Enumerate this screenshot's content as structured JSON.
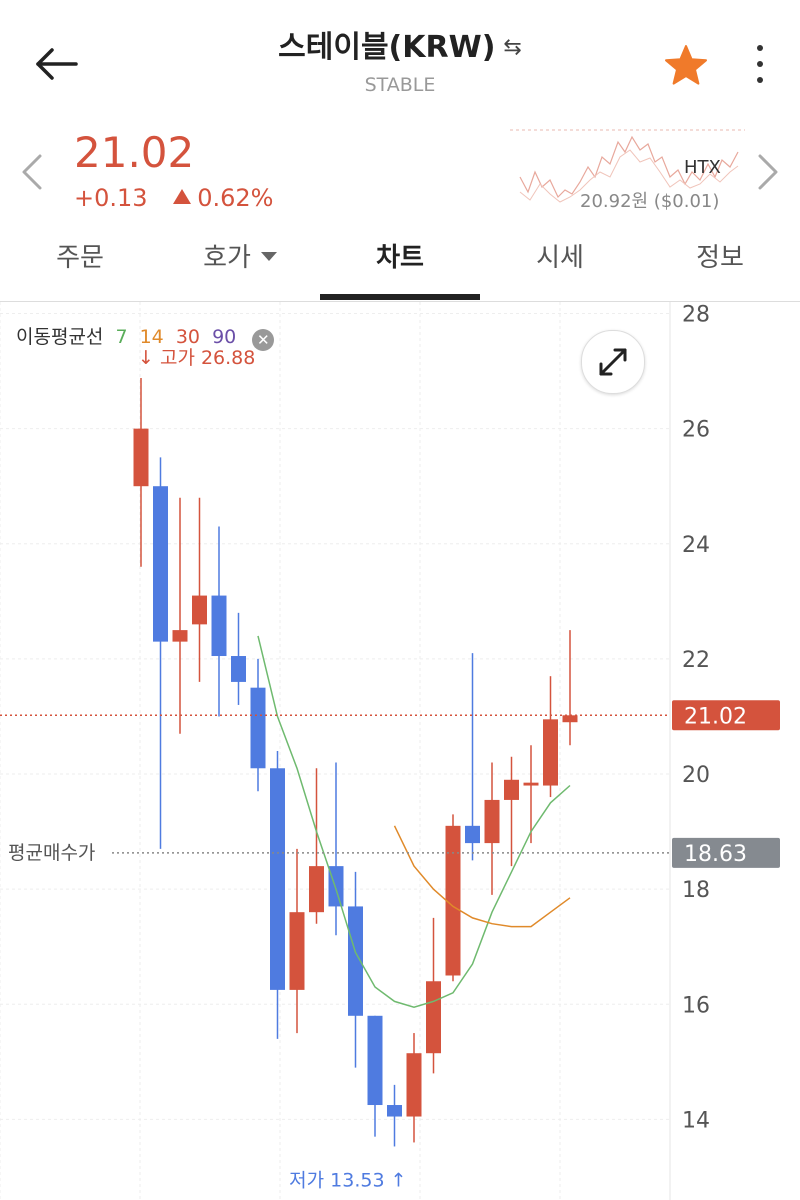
{
  "header": {
    "title": "스테이블(KRW)",
    "swap_symbol": "⇆",
    "subtitle": "STABLE"
  },
  "price": {
    "current": "21.02",
    "change": "+0.13",
    "change_pct": "0.62%",
    "exchange": "HTX",
    "converted": "20.92원 ($0.01)"
  },
  "tabs": [
    {
      "label": "주문"
    },
    {
      "label": "호가"
    },
    {
      "label": "차트"
    },
    {
      "label": "시세"
    },
    {
      "label": "정보"
    }
  ],
  "ma_legend": {
    "title": "이동평균선",
    "periods": [
      {
        "label": "7",
        "color": "#5aad5a"
      },
      {
        "label": "14",
        "color": "#e08a2a"
      },
      {
        "label": "30",
        "color": "#d4533d"
      },
      {
        "label": "90",
        "color": "#6b4fa8"
      }
    ],
    "close_symbol": "✕"
  },
  "avg_buy_label": "평균매수가",
  "colors": {
    "up": "#d4533d",
    "down": "#4f7be0",
    "ma7": "#6fba6f",
    "ma14": "#e08a2a"
  },
  "chart_data": {
    "type": "candlestick",
    "y_ticks": [
      "28",
      "26",
      "24",
      "22",
      "20",
      "18",
      "16",
      "14"
    ],
    "ylim": [
      12.6,
      28.2
    ],
    "current_price": {
      "value": 21.02,
      "label": "21.02"
    },
    "avg_buy_price": {
      "value": 18.63,
      "label": "18.63"
    },
    "high_annotation": {
      "text": "고가 26.88",
      "value": 26.88
    },
    "low_annotation": {
      "text": "저가 13.53",
      "value": 13.53
    },
    "candles": [
      {
        "o": 25.0,
        "h": 26.88,
        "l": 23.6,
        "c": 26.0
      },
      {
        "o": 25.0,
        "h": 25.5,
        "l": 18.7,
        "c": 22.3
      },
      {
        "o": 22.3,
        "h": 24.8,
        "l": 20.7,
        "c": 22.5
      },
      {
        "o": 22.6,
        "h": 24.8,
        "l": 21.6,
        "c": 23.1
      },
      {
        "o": 23.1,
        "h": 24.3,
        "l": 21.0,
        "c": 22.05
      },
      {
        "o": 22.05,
        "h": 22.8,
        "l": 21.2,
        "c": 21.6
      },
      {
        "o": 21.5,
        "h": 22.0,
        "l": 19.7,
        "c": 20.1
      },
      {
        "o": 20.1,
        "h": 20.4,
        "l": 15.4,
        "c": 16.25
      },
      {
        "o": 16.25,
        "h": 18.7,
        "l": 15.5,
        "c": 17.6
      },
      {
        "o": 17.6,
        "h": 20.1,
        "l": 17.4,
        "c": 18.4
      },
      {
        "o": 18.4,
        "h": 20.2,
        "l": 17.2,
        "c": 17.7
      },
      {
        "o": 17.7,
        "h": 18.3,
        "l": 14.9,
        "c": 15.8
      },
      {
        "o": 15.8,
        "h": 15.8,
        "l": 13.7,
        "c": 14.25
      },
      {
        "o": 14.25,
        "h": 14.6,
        "l": 13.53,
        "c": 14.05
      },
      {
        "o": 14.05,
        "h": 15.5,
        "l": 13.6,
        "c": 15.15
      },
      {
        "o": 15.15,
        "h": 17.5,
        "l": 14.8,
        "c": 16.4
      },
      {
        "o": 16.5,
        "h": 19.3,
        "l": 16.4,
        "c": 19.1
      },
      {
        "o": 19.1,
        "h": 22.1,
        "l": 18.5,
        "c": 18.8
      },
      {
        "o": 18.8,
        "h": 20.2,
        "l": 17.9,
        "c": 19.55
      },
      {
        "o": 19.55,
        "h": 20.3,
        "l": 18.4,
        "c": 19.9
      },
      {
        "o": 19.8,
        "h": 20.5,
        "l": 18.8,
        "c": 19.85
      },
      {
        "o": 19.8,
        "h": 21.7,
        "l": 19.6,
        "c": 20.95
      },
      {
        "o": 20.9,
        "h": 22.5,
        "l": 20.5,
        "c": 21.02
      }
    ],
    "ma7": [
      [
        6,
        22.4
      ],
      [
        7,
        21.0
      ],
      [
        8,
        20.1
      ],
      [
        9,
        19.0
      ],
      [
        10,
        18.0
      ],
      [
        11,
        16.9
      ],
      [
        12,
        16.3
      ],
      [
        13,
        16.05
      ],
      [
        14,
        15.95
      ],
      [
        15,
        16.05
      ],
      [
        16,
        16.2
      ],
      [
        17,
        16.7
      ],
      [
        18,
        17.6
      ],
      [
        19,
        18.3
      ],
      [
        20,
        19.0
      ],
      [
        21,
        19.5
      ],
      [
        22,
        19.8
      ]
    ],
    "ma14": [
      [
        13,
        19.1
      ],
      [
        14,
        18.4
      ],
      [
        15,
        18.0
      ],
      [
        16,
        17.7
      ],
      [
        17,
        17.5
      ],
      [
        18,
        17.4
      ],
      [
        19,
        17.35
      ],
      [
        20,
        17.35
      ],
      [
        21,
        17.6
      ],
      [
        22,
        17.85
      ]
    ]
  }
}
